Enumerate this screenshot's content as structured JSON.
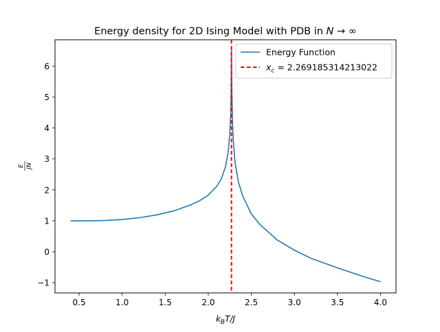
{
  "chart_data": {
    "type": "line",
    "title": "Energy density for 2D Ising Model with PDB in N → ∞",
    "title_parts": {
      "prefix": "Energy density for 2D Ising Model with PDB in ",
      "math": "N → ∞"
    },
    "xlabel": "kBT/J",
    "xlabel_parts": {
      "k": "k",
      "sub": "B",
      "rest": "T/J"
    },
    "ylabel": "E / JN",
    "ylabel_parts": {
      "numerator": "E",
      "denominator": "JN"
    },
    "xlim": [
      0.22,
      4.18
    ],
    "ylim": [
      -1.33,
      6.85
    ],
    "xticks": [
      0.5,
      1.0,
      1.5,
      2.0,
      2.5,
      3.0,
      3.5,
      4.0
    ],
    "xtick_labels": [
      "0.5",
      "1.0",
      "1.5",
      "2.0",
      "2.5",
      "3.0",
      "3.5",
      "4.0"
    ],
    "yticks": [
      -1,
      0,
      1,
      2,
      3,
      4,
      5,
      6
    ],
    "ytick_labels": [
      "−1",
      "0",
      "1",
      "2",
      "3",
      "4",
      "5",
      "6"
    ],
    "grid": false,
    "legend_position": "top-right",
    "series": [
      {
        "name": "Energy Function",
        "color": "#1f77b4",
        "style": "solid",
        "x": [
          0.4,
          0.6,
          0.8,
          1.0,
          1.2,
          1.4,
          1.6,
          1.8,
          1.9,
          2.0,
          2.1,
          2.15,
          2.2,
          2.23,
          2.25,
          2.26,
          2.265,
          2.269,
          2.273,
          2.28,
          2.29,
          2.31,
          2.35,
          2.4,
          2.5,
          2.6,
          2.8,
          3.0,
          3.2,
          3.5,
          3.8,
          4.0
        ],
        "y": [
          1.0,
          1.0,
          1.01,
          1.04,
          1.1,
          1.19,
          1.32,
          1.52,
          1.65,
          1.83,
          2.12,
          2.35,
          2.75,
          3.2,
          3.8,
          4.4,
          5.1,
          6.6,
          5.4,
          4.3,
          3.6,
          2.9,
          2.25,
          1.8,
          1.22,
          0.88,
          0.38,
          0.05,
          -0.22,
          -0.52,
          -0.8,
          -0.97
        ]
      },
      {
        "name": "x_c = 2.269185314213022",
        "name_parts": {
          "x": "x",
          "sub": "c",
          "rest": " = 2.269185314213022"
        },
        "color": "#ff0000",
        "style": "dashed",
        "x_value": 2.269185314213022
      }
    ]
  }
}
